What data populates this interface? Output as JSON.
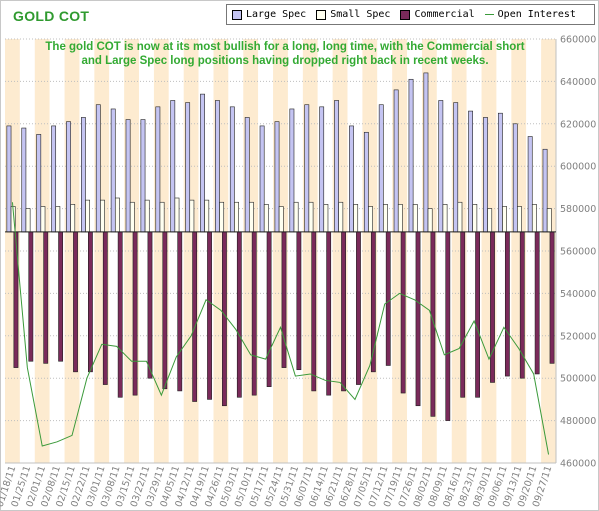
{
  "header": {
    "title": "GOLD COT"
  },
  "annotation": "The gold COT is now at its most bullish for a long, long time, with the Commercial short and Large Spec long positions having dropped right back in recent weeks.",
  "colors": {
    "large_spec": "#c4c4f2",
    "small_spec": "#fffff0",
    "commercial": "#7a2a5a",
    "open_interest": "#3a9a3a",
    "band_a": "#ffffff",
    "band_b": "#fdebd0",
    "grid": "#bfbfbf",
    "title": "#2f9a2f"
  },
  "chart_data": {
    "type": "bar",
    "title": "GOLD COT",
    "categories": [
      "01/18/11",
      "01/25/11",
      "02/01/11",
      "02/08/11",
      "02/15/11",
      "02/22/11",
      "03/01/11",
      "03/08/11",
      "03/15/11",
      "03/22/11",
      "03/29/11",
      "04/05/11",
      "04/12/11",
      "04/19/11",
      "04/26/11",
      "05/03/11",
      "05/10/11",
      "05/17/11",
      "05/24/11",
      "05/31/11",
      "06/07/11",
      "06/14/11",
      "06/21/11",
      "06/28/11",
      "07/05/11",
      "07/12/11",
      "07/19/11",
      "07/26/11",
      "08/02/11",
      "08/09/11",
      "08/16/11",
      "08/23/11",
      "08/30/11",
      "09/06/11",
      "09/13/11",
      "09/20/11",
      "09/27/11"
    ],
    "x_tick_labels": [
      "01/18/11",
      "01/25/11",
      "02/01/11",
      "02/08/11",
      "02/15/11",
      "02/22/11",
      "03/01/11",
      "03/08/11",
      "03/15/11",
      "03/22/11",
      "03/29/11",
      "04/05/11",
      "04/12/11",
      "04/19/11",
      "04/26/11",
      "05/03/11",
      "05/10/11",
      "05/17/11",
      "05/24/11",
      "05/31/11",
      "06/07/11",
      "06/14/11",
      "06/21/11",
      "06/28/11",
      "07/05/11",
      "07/12/11",
      "07/19/11",
      "07/26/11",
      "08/02/11",
      "08/09/11",
      "08/16/11",
      "08/23/11",
      "08/30/11",
      "09/06/11",
      "09/13/11",
      "09/20/11",
      "09/27/11"
    ],
    "y_tick_labels": [
      "460000",
      "480000",
      "500000",
      "520000",
      "540000",
      "560000",
      "580000",
      "600000",
      "620000",
      "640000",
      "660000"
    ],
    "ylim": [
      460000,
      660000
    ],
    "baseline": 569000,
    "grid": true,
    "legend": "top",
    "series": [
      {
        "name": "Large Spec",
        "kind": "bar",
        "values": [
          619000,
          618000,
          615000,
          619000,
          621000,
          623000,
          629000,
          627000,
          622000,
          622000,
          628000,
          631000,
          630000,
          634000,
          631000,
          628000,
          623000,
          619000,
          621000,
          627000,
          629000,
          628000,
          631000,
          619000,
          616000,
          629000,
          636000,
          641000,
          644000,
          631000,
          630000,
          626000,
          623000,
          625000,
          620000,
          614000,
          608000
        ]
      },
      {
        "name": "Small Spec",
        "kind": "bar",
        "values": [
          581000,
          580000,
          581000,
          581000,
          582000,
          584000,
          584000,
          585000,
          583000,
          584000,
          583000,
          585000,
          584000,
          584000,
          583000,
          583000,
          583000,
          582000,
          581000,
          583000,
          583000,
          582000,
          583000,
          582000,
          581000,
          582000,
          582000,
          582000,
          580000,
          582000,
          583000,
          582000,
          580000,
          581000,
          581000,
          582000,
          580000
        ]
      },
      {
        "name": "Commercial",
        "kind": "bar",
        "values": [
          505000,
          508000,
          507000,
          508000,
          503000,
          503000,
          497000,
          491000,
          492000,
          500000,
          495000,
          494000,
          489000,
          490000,
          487000,
          491000,
          492000,
          496000,
          505000,
          504000,
          494000,
          492000,
          494000,
          497000,
          503000,
          506000,
          493000,
          487000,
          482000,
          480000,
          491000,
          491000,
          498000,
          501000,
          500000,
          502000,
          507000
        ]
      },
      {
        "name": "Open Interest",
        "kind": "line",
        "values": [
          583000,
          505000,
          468000,
          470000,
          473000,
          500000,
          516000,
          515000,
          508000,
          508000,
          492000,
          510000,
          520000,
          537000,
          532000,
          523000,
          511000,
          509000,
          524000,
          501000,
          502000,
          499000,
          498000,
          490000,
          506000,
          535000,
          540000,
          537000,
          532000,
          511000,
          514000,
          527000,
          509000,
          524000,
          514000,
          502000,
          464000
        ]
      }
    ]
  }
}
